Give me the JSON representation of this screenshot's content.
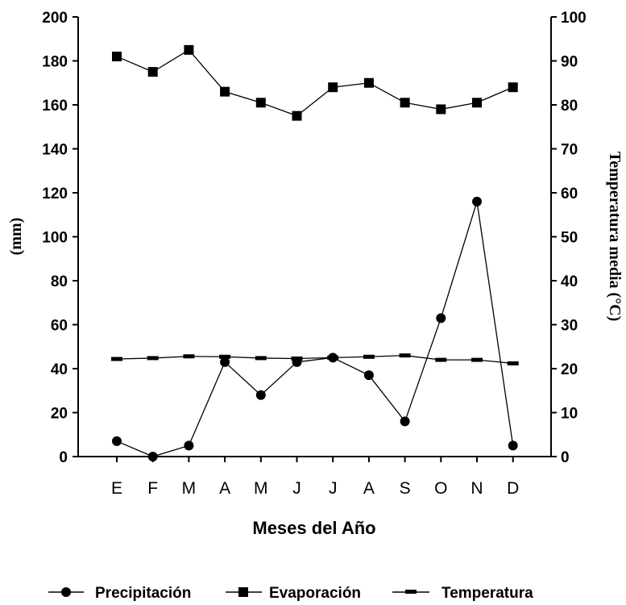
{
  "chart_data": {
    "type": "line",
    "title": "",
    "xlabel": "Meses del Año",
    "ylabel_left": "(mm)",
    "ylabel_right": "Temperatura media (°C)",
    "ylim_left": [
      0,
      200
    ],
    "ylim_right": [
      0,
      100
    ],
    "yticks_left": [
      "0",
      "20",
      "40",
      "60",
      "80",
      "100",
      "120",
      "140",
      "160",
      "180",
      "200"
    ],
    "yticks_right": [
      "0",
      "10",
      "20",
      "30",
      "40",
      "50",
      "60",
      "70",
      "80",
      "90",
      "100"
    ],
    "categories": [
      "E",
      "F",
      "M",
      "A",
      "M",
      "J",
      "J",
      "A",
      "S",
      "O",
      "N",
      "D"
    ],
    "grid": false,
    "legend_position": "bottom",
    "series": [
      {
        "name": "Precipitación",
        "axis": "left",
        "marker": "circle",
        "values": [
          7,
          0,
          5,
          43,
          28,
          43,
          45,
          37,
          16,
          63,
          116,
          5
        ]
      },
      {
        "name": "Evaporación",
        "axis": "left",
        "marker": "square",
        "values": [
          182,
          175,
          185,
          166,
          161,
          155,
          168,
          170,
          161,
          158,
          161,
          168
        ]
      },
      {
        "name": "Temperatura",
        "axis": "right",
        "marker": "dash",
        "values": [
          22.2,
          22.4,
          22.8,
          22.7,
          22.4,
          22.3,
          22.5,
          22.7,
          23.0,
          22.0,
          22.0,
          21.2
        ]
      }
    ]
  }
}
